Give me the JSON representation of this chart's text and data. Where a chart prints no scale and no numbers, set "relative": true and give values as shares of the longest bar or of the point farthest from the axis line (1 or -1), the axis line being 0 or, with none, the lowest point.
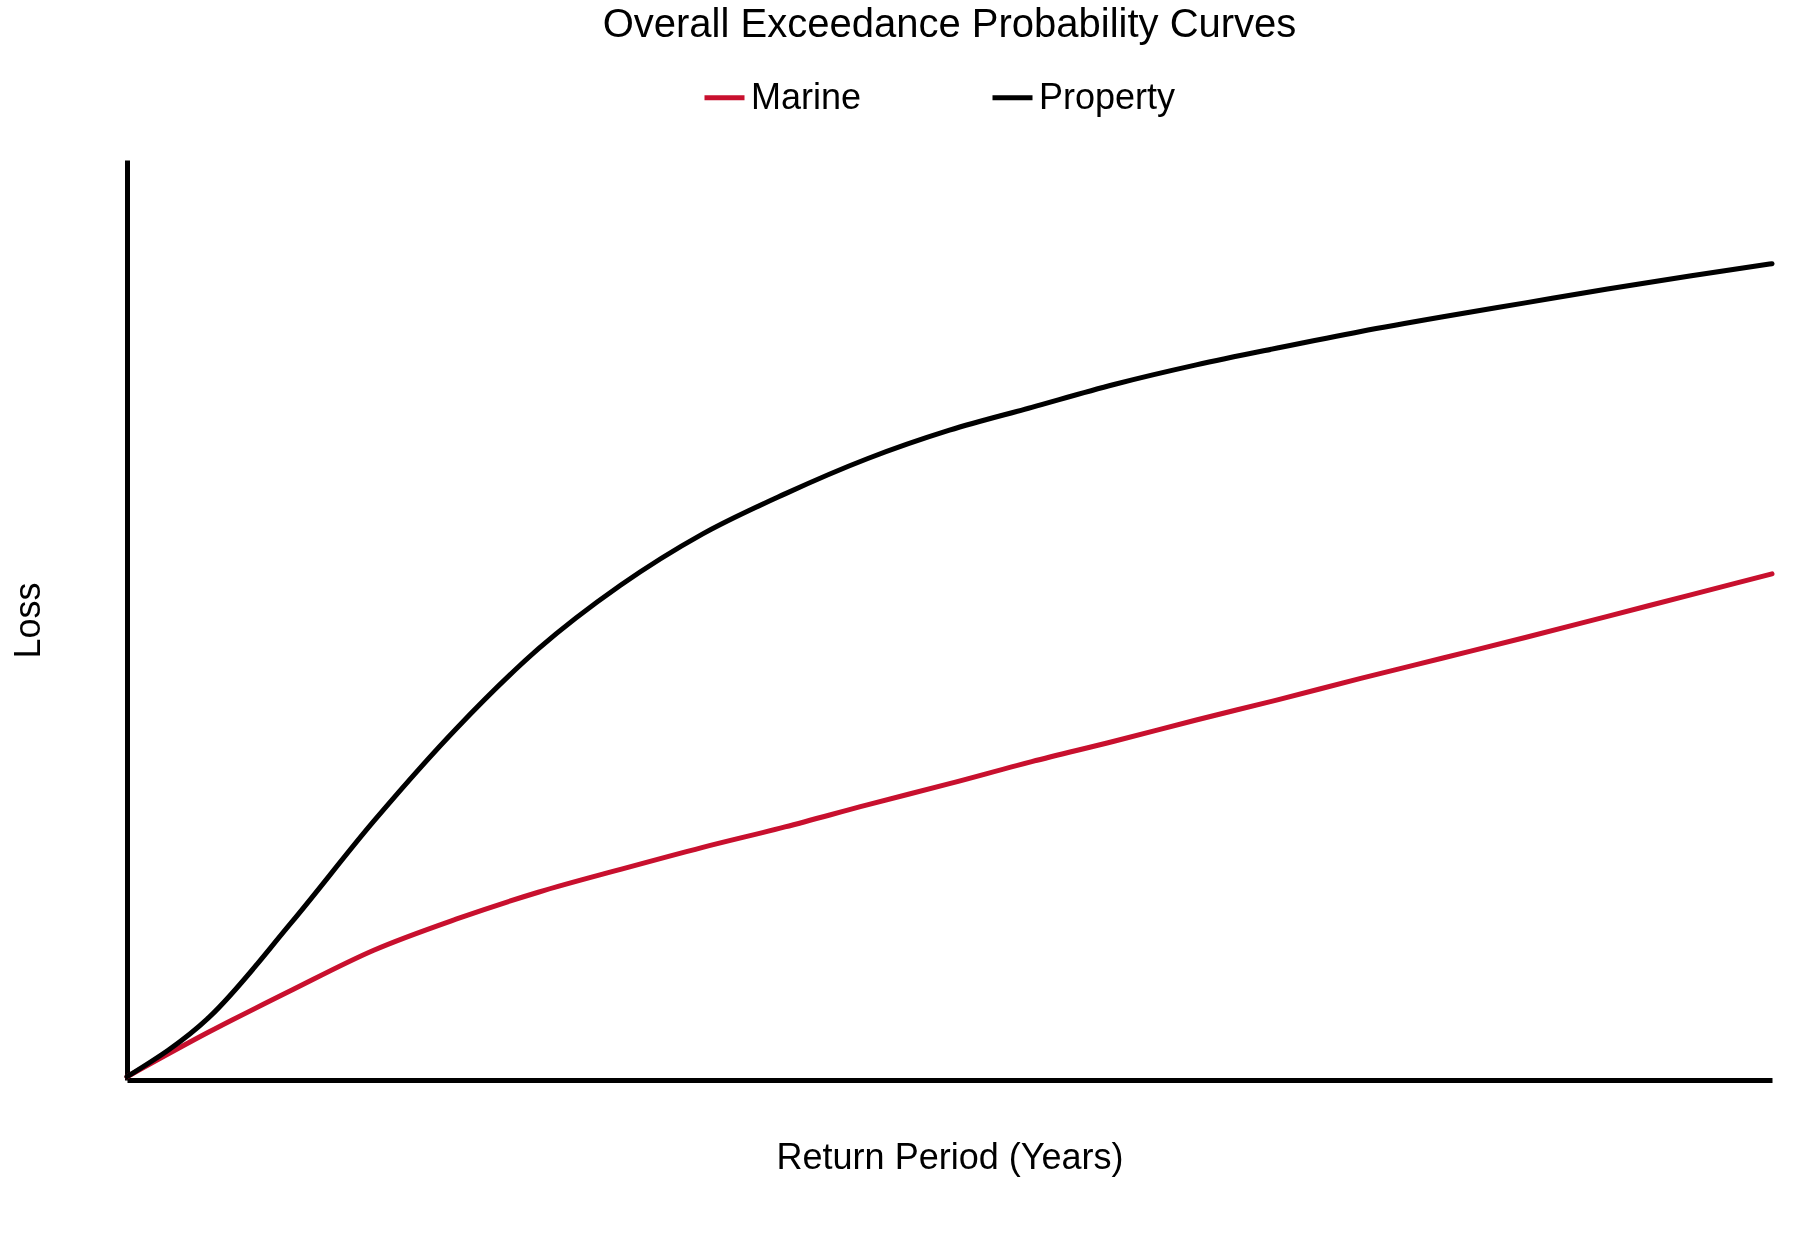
{
  "chart_data": {
    "type": "line",
    "title": "Overall Exceedance Probability Curves",
    "xlabel": "Return Period (Years)",
    "ylabel": "Loss",
    "relative": true,
    "legend": "top",
    "grid": false,
    "marker": "none",
    "line_style": "solid",
    "categories": [
      null,
      null,
      null,
      null,
      null,
      null,
      null,
      null,
      null,
      null,
      null,
      null,
      null,
      null,
      null,
      null,
      null,
      null,
      null,
      null,
      null
    ],
    "series": [
      {
        "name": "Marine",
        "color": "#c8102e",
        "values": [
          0.004,
          0.059,
          0.11,
          0.159,
          0.197,
          0.23,
          0.258,
          0.285,
          0.31,
          0.337,
          0.363,
          0.39,
          0.415,
          0.441,
          0.466,
          0.492,
          0.517,
          0.542,
          0.568,
          0.594,
          0.62
        ]
      },
      {
        "name": "Property",
        "color": "#000000",
        "values": [
          0.004,
          0.077,
          0.193,
          0.317,
          0.43,
          0.528,
          0.606,
          0.669,
          0.718,
          0.761,
          0.796,
          0.824,
          0.852,
          0.876,
          0.897,
          0.917,
          0.935,
          0.952,
          0.969,
          0.985,
          1
        ]
      }
    ]
  }
}
